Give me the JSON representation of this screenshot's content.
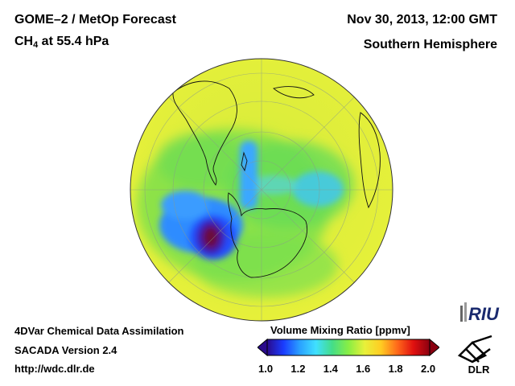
{
  "header": {
    "title": "GOME–2 / MetOp Forecast",
    "species_prefix": "CH",
    "species_sub": "4",
    "species_suffix": " at 55.4 hPa",
    "date": "Nov 30, 2013, 12:00 GMT",
    "region": "Southern Hemisphere"
  },
  "footer": {
    "line1": "4DVar Chemical Data Assimilation",
    "line2": "SACADA Version 2.4",
    "line3": "http://wdc.dlr.de"
  },
  "colorbar": {
    "title": "Volume Mixing Ratio [ppmv]",
    "min": 1.0,
    "max": 2.0,
    "ticks": [
      "1.0",
      "1.2",
      "1.4",
      "1.6",
      "1.8",
      "2.0"
    ],
    "colors": [
      "#2a0a8c",
      "#1a3cff",
      "#2aa0ff",
      "#40e0ff",
      "#44dd88",
      "#88ee44",
      "#e8f03a",
      "#ffcc22",
      "#ff6a1a",
      "#e01010",
      "#8a0010"
    ]
  },
  "logos": {
    "riu": "RIU",
    "dlr": "DLR"
  },
  "map": {
    "projection": "orthographic, south polar",
    "background_color": "#e3ef3c"
  }
}
